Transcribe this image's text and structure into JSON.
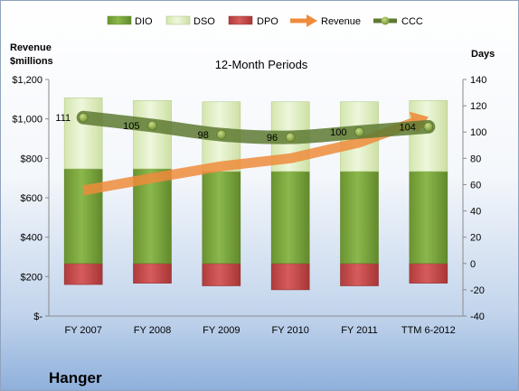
{
  "company": "Hanger",
  "chart_data": {
    "type": "bar",
    "title": "12-Month Periods",
    "left_axis_label": [
      "Revenue",
      "$millions"
    ],
    "right_axis_label": "Days",
    "categories": [
      "FY 2007",
      "FY 2008",
      "FY 2009",
      "FY 2010",
      "FY 2011",
      "TTM 6-2012"
    ],
    "left_ylim": [
      0,
      1200
    ],
    "left_ticks": [
      {
        "v": 0,
        "label": "$-"
      },
      {
        "v": 200,
        "label": "$200"
      },
      {
        "v": 400,
        "label": "$400"
      },
      {
        "v": 600,
        "label": "$600"
      },
      {
        "v": 800,
        "label": "$800"
      },
      {
        "v": 1000,
        "label": "$1,000"
      },
      {
        "v": 1200,
        "label": "$1,200"
      }
    ],
    "right_ylim": [
      -40,
      140
    ],
    "right_ticks": [
      -40,
      -20,
      0,
      20,
      40,
      60,
      80,
      100,
      120,
      140
    ],
    "series": [
      {
        "name": "DIO",
        "axis": "right",
        "kind": "stacked-bar",
        "color": "#77a33b",
        "values": [
          72,
          72,
          70,
          70,
          70,
          70
        ]
      },
      {
        "name": "DSO",
        "axis": "right",
        "kind": "stacked-bar",
        "color": "#dfeec2",
        "values": [
          54,
          52,
          53,
          53,
          53,
          54
        ]
      },
      {
        "name": "DPO",
        "axis": "right",
        "kind": "negative-bar",
        "color": "#c24a4a",
        "values": [
          -16,
          -15,
          -17,
          -20,
          -17,
          -15
        ]
      },
      {
        "name": "Revenue",
        "axis": "left",
        "kind": "arrow-line",
        "color": "#ee8c3c",
        "values": [
          637,
          700,
          760,
          800,
          880,
          1010
        ]
      },
      {
        "name": "CCC",
        "axis": "right",
        "kind": "line",
        "color": "#5e7a32",
        "values": [
          111,
          105,
          98,
          96,
          100,
          104
        ]
      }
    ],
    "data_labels": [
      "111",
      "105",
      "98",
      "96",
      "100",
      "104"
    ],
    "grid": false,
    "legend_position": "top"
  }
}
